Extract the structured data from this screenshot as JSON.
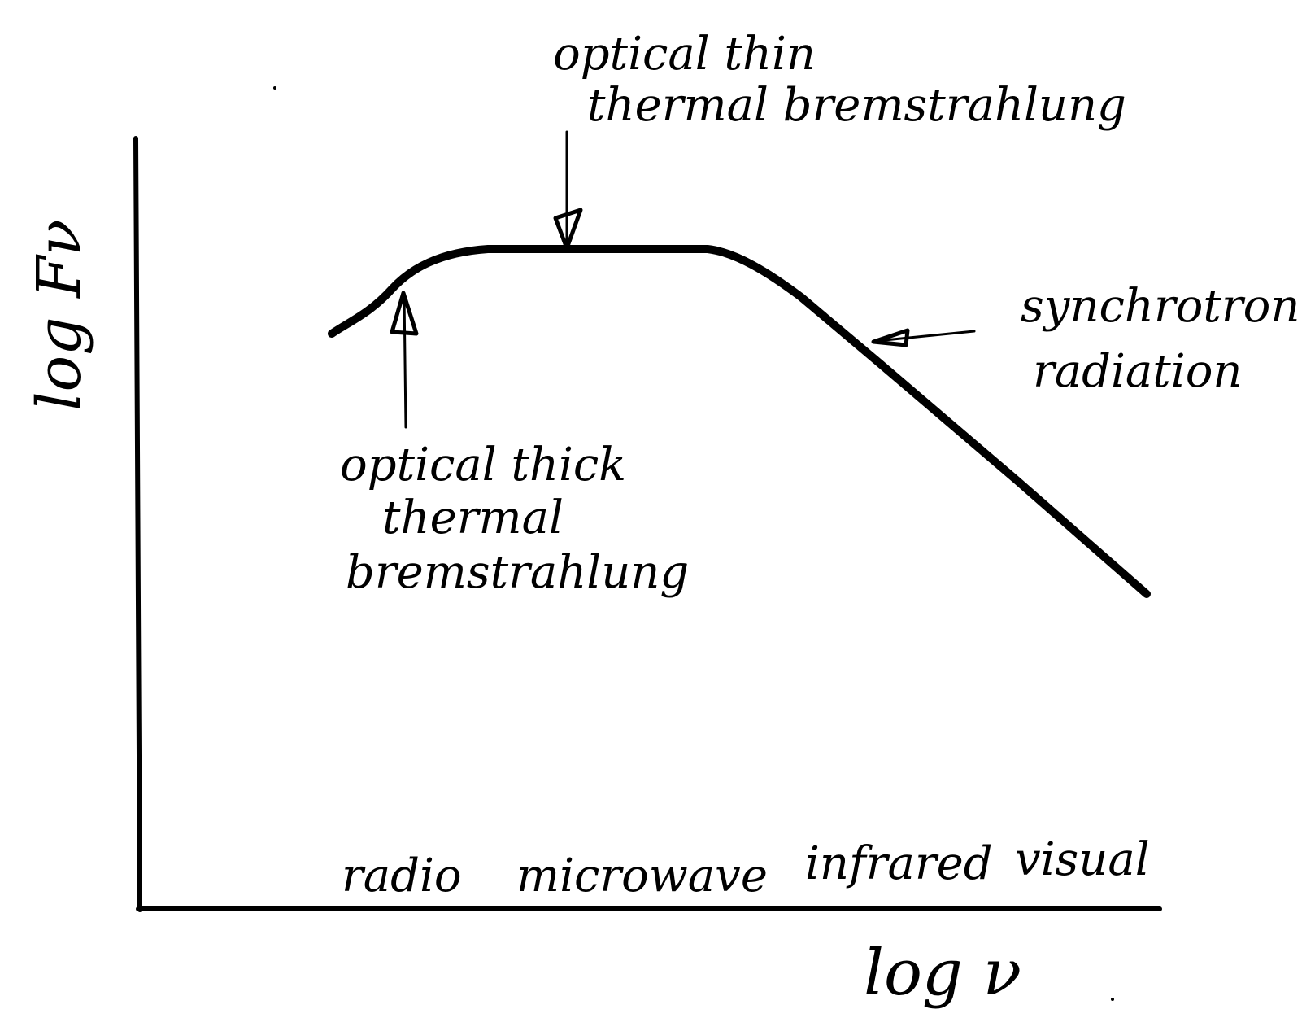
{
  "labels": {
    "y_axis": "log Fν",
    "x_axis": "log ν",
    "thin_line1": "optical thin",
    "thin_line2": "thermal bremstrahlung",
    "thick_line1": "optical thick",
    "thick_line2": "thermal",
    "thick_line3": "bremstrahlung",
    "sync_line1": "synchrotron",
    "sync_line2": "radiation",
    "band_radio": "radio",
    "band_microwave": "microwave",
    "band_infrared": "infrared",
    "band_visual": "visual"
  },
  "colors": {
    "ink": "#000000",
    "paper": "#ffffff"
  }
}
